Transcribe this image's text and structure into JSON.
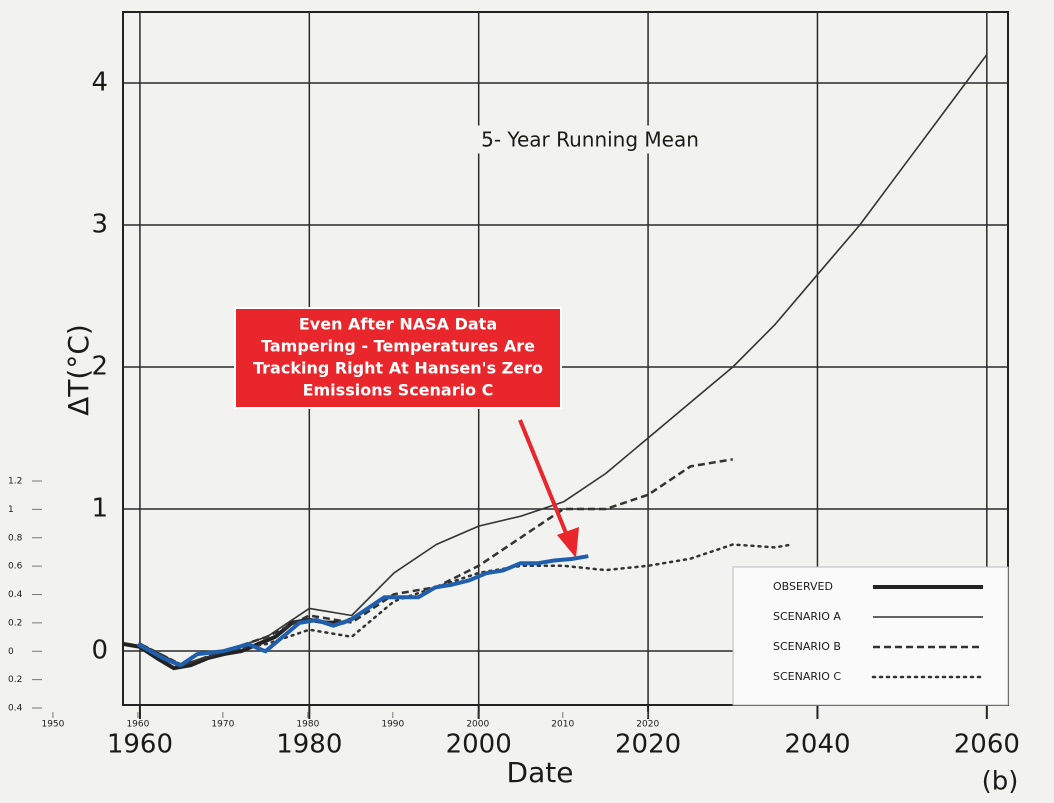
{
  "chart_data": {
    "type": "line",
    "title": "5- Year Running Mean",
    "panel_label": "(b)",
    "x_label": "Date",
    "y_label": "ΔT(°C)",
    "xlim": [
      1958,
      2062.5
    ],
    "ylim": [
      -0.38,
      4.5
    ],
    "xticks": [
      1960,
      1980,
      2000,
      2020,
      2040,
      2060
    ],
    "yticks": [
      0,
      1,
      2,
      3,
      4
    ],
    "x2lim": [
      1947.3,
      2062.4
    ],
    "x2ticks": [
      1950,
      1960,
      1970,
      1980,
      1990,
      2000,
      2010,
      2020
    ],
    "y2lim": [
      -0.4,
      1.2
    ],
    "y2ticks": [
      {
        "value": -0.4,
        "label": "0.4"
      },
      {
        "value": -0.2,
        "label": "0.2"
      },
      0,
      0.2,
      0.4,
      0.6,
      0.8,
      1,
      1.2
    ],
    "grid": true,
    "legend": "lower right",
    "annotation": [
      "Even After NASA Data",
      "Tampering - Temperatures Are",
      "Tracking Right At Hansen's Zero",
      "Emissions Scenario C"
    ],
    "annotation_color": "#e8262b",
    "series": [
      {
        "name": "OBSERVED",
        "color": "#222222",
        "style": "thick",
        "x": [
          1958,
          1960,
          1962,
          1964,
          1966,
          1968,
          1970,
          1972,
          1974,
          1976,
          1978,
          1980,
          1982,
          1984,
          1986
        ],
        "values": [
          0.05,
          0.03,
          -0.05,
          -0.12,
          -0.1,
          -0.05,
          -0.02,
          0.0,
          0.05,
          0.1,
          0.2,
          0.22,
          0.2,
          0.2,
          0.25
        ]
      },
      {
        "name": "SCENARIO A",
        "color": "#333333",
        "style": "solid",
        "x": [
          1960,
          1965,
          1970,
          1975,
          1980,
          1985,
          1990,
          1995,
          2000,
          2005,
          2010,
          2015,
          2020,
          2025,
          2030,
          2035,
          2040,
          2045,
          2050,
          2055,
          2060
        ],
        "values": [
          0.05,
          -0.1,
          0.0,
          0.1,
          0.3,
          0.25,
          0.55,
          0.75,
          0.88,
          0.95,
          1.05,
          1.25,
          1.5,
          1.75,
          2.0,
          2.3,
          2.65,
          3.0,
          3.4,
          3.8,
          4.2
        ]
      },
      {
        "name": "SCENARIO B",
        "color": "#333333",
        "style": "dashed",
        "x": [
          1960,
          1965,
          1970,
          1975,
          1980,
          1985,
          1990,
          1995,
          2000,
          2005,
          2010,
          2015,
          2020,
          2025,
          2030
        ],
        "values": [
          0.05,
          -0.1,
          0.0,
          0.1,
          0.25,
          0.2,
          0.4,
          0.45,
          0.6,
          0.8,
          1.0,
          1.0,
          1.1,
          1.3,
          1.35
        ]
      },
      {
        "name": "SCENARIO C",
        "color": "#333333",
        "style": "dotted",
        "x": [
          1960,
          1965,
          1970,
          1975,
          1980,
          1985,
          1990,
          1995,
          2000,
          2005,
          2010,
          2015,
          2020,
          2025,
          2030,
          2035,
          2037
        ],
        "values": [
          0.05,
          -0.1,
          0.0,
          0.05,
          0.15,
          0.1,
          0.35,
          0.45,
          0.55,
          0.6,
          0.6,
          0.57,
          0.6,
          0.65,
          0.75,
          0.73,
          0.75
        ]
      },
      {
        "color": "#1f5fae",
        "style": "thick",
        "axis": "y2",
        "x_axis": "x2",
        "x": [
          1960,
          1963,
          1965,
          1967,
          1970,
          1973,
          1975,
          1977,
          1979,
          1981,
          1983,
          1985,
          1987,
          1989,
          1991,
          1993,
          1995,
          1997,
          1999,
          2001,
          2003,
          2005,
          2007,
          2009,
          2011,
          2013
        ],
        "values": [
          0.05,
          -0.05,
          -0.1,
          -0.02,
          0.0,
          0.05,
          0.0,
          0.1,
          0.2,
          0.22,
          0.18,
          0.22,
          0.3,
          0.38,
          0.38,
          0.38,
          0.45,
          0.47,
          0.5,
          0.55,
          0.57,
          0.62,
          0.62,
          0.64,
          0.65,
          0.67
        ]
      }
    ]
  }
}
